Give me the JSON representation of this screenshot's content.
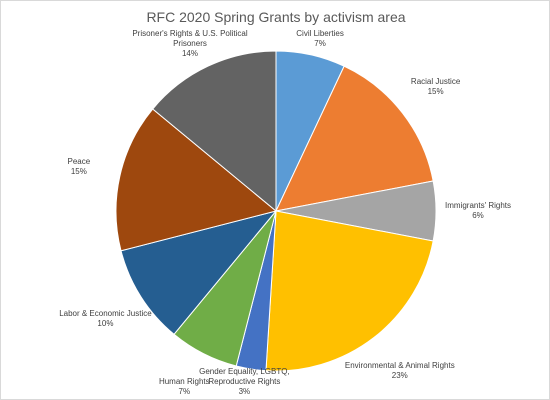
{
  "chart_data": {
    "type": "pie",
    "title": "RFC 2020 Spring Grants by activism area",
    "categories": [
      "Civil Liberties",
      "Racial Justice",
      "Immigrants' Rights",
      "Environmental & Animal Rights",
      "Gender Equality, LGBTQ, Reproductive Rights",
      "Human Rights",
      "Labor & Economic Justice",
      "Peace",
      "Prisoner's Rights & U.S. Political Prisoners"
    ],
    "values": [
      7,
      15,
      6,
      23,
      3,
      7,
      10,
      15,
      14
    ],
    "value_labels": [
      "7%",
      "15%",
      "6%",
      "23%",
      "3%",
      "7%",
      "10%",
      "15%",
      "14%"
    ],
    "colors": [
      "#5b9bd5",
      "#ed7d31",
      "#a5a5a5",
      "#ffc000",
      "#4472c4",
      "#70ad47",
      "#255e91",
      "#9e480e",
      "#636363"
    ]
  }
}
